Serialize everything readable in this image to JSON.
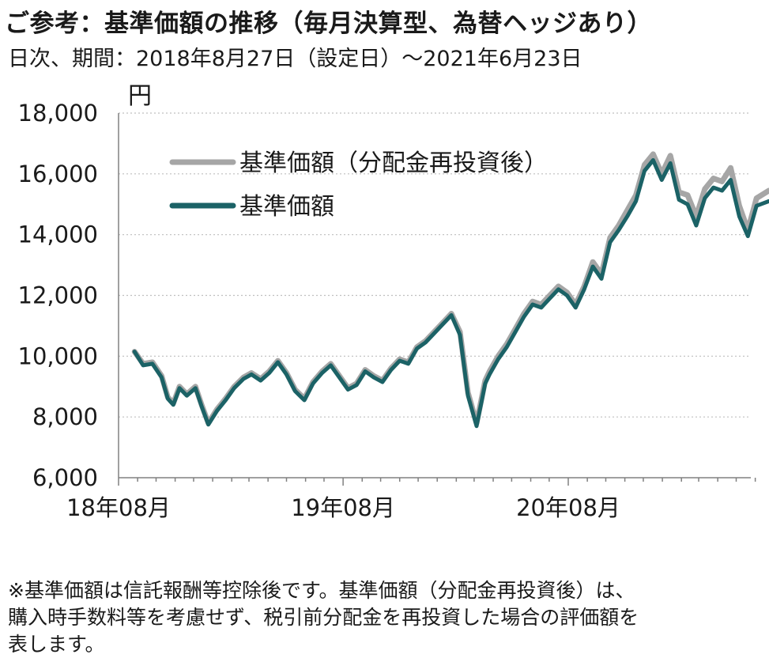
{
  "header": {
    "title": "ご参考：基準価額の推移（毎月決算型、為替ヘッジあり）",
    "subtitle": "日次、期間：2018年8月27日（設定日）～2021年6月23日"
  },
  "footnote": {
    "line1": "※基準価額は信託報酬等控除後です。基準価額（分配金再投資後）は、",
    "line2": "購入時手数料等を考慮せず、税引前分配金を再投資した場合の評価額を",
    "line3": "表します。"
  },
  "colors": {
    "reinvested": "#a6a6a6",
    "nav": "#1b6266",
    "grid": "#bfbfbf",
    "axis": "#808080"
  },
  "chart_data": {
    "type": "line",
    "yunit": "円",
    "ylim": [
      6000,
      18000
    ],
    "yticks": [
      "6,000",
      "8,000",
      "10,000",
      "12,000",
      "14,000",
      "16,000",
      "18,000"
    ],
    "xticks": [
      "18年08月",
      "19年08月",
      "20年08月"
    ],
    "grid": "horizontal dotted",
    "legend_position": "top-left",
    "series": [
      {
        "name": "基準価額（分配金再投資後）",
        "x": [
          "2018-08-27",
          "2018-09-10",
          "2018-09-25",
          "2018-10-10",
          "2018-10-20",
          "2018-10-29",
          "2018-11-08",
          "2018-11-20",
          "2018-12-04",
          "2018-12-14",
          "2018-12-25",
          "2019-01-08",
          "2019-01-22",
          "2019-02-05",
          "2019-02-20",
          "2019-03-05",
          "2019-03-20",
          "2019-04-03",
          "2019-04-17",
          "2019-05-01",
          "2019-05-15",
          "2019-05-30",
          "2019-06-13",
          "2019-06-28",
          "2019-07-12",
          "2019-07-26",
          "2019-08-09",
          "2019-08-23",
          "2019-09-06",
          "2019-09-20",
          "2019-10-04",
          "2019-10-18",
          "2019-11-01",
          "2019-11-15",
          "2019-11-29",
          "2019-12-13",
          "2019-12-27",
          "2020-01-10",
          "2020-01-24",
          "2020-02-07",
          "2020-02-20",
          "2020-03-05",
          "2020-03-12",
          "2020-03-19",
          "2020-03-26",
          "2020-04-09",
          "2020-04-23",
          "2020-05-07",
          "2020-05-21",
          "2020-06-04",
          "2020-06-18",
          "2020-07-02",
          "2020-07-16",
          "2020-07-30",
          "2020-08-13",
          "2020-08-27",
          "2020-09-10",
          "2020-09-24",
          "2020-10-08",
          "2020-10-22",
          "2020-11-05",
          "2020-11-19",
          "2020-12-03",
          "2020-12-17",
          "2020-12-31",
          "2021-01-14",
          "2021-01-28",
          "2021-02-11",
          "2021-02-25",
          "2021-03-11",
          "2021-03-25",
          "2021-04-08",
          "2021-04-22",
          "2021-05-06",
          "2021-05-20",
          "2021-06-03",
          "2021-06-23"
        ],
        "y": [
          10150,
          9750,
          9800,
          9350,
          8650,
          8450,
          9000,
          8750,
          9000,
          8400,
          7800,
          8250,
          8600,
          9000,
          9300,
          9450,
          9250,
          9500,
          9850,
          9450,
          8900,
          8600,
          9150,
          9500,
          9750,
          9350,
          8950,
          9100,
          9550,
          9350,
          9200,
          9600,
          9900,
          9800,
          10300,
          10500,
          10800,
          11100,
          11400,
          10800,
          8800,
          7800,
          8500,
          9200,
          9500,
          10000,
          10400,
          10900,
          11400,
          11800,
          11700,
          12000,
          12300,
          12100,
          11700,
          12300,
          13100,
          12700,
          13900,
          14300,
          14800,
          15300,
          16300,
          16650,
          16000,
          16600,
          15400,
          15300,
          14600,
          15500,
          15850,
          15750,
          16200,
          14950,
          14150,
          15200,
          15450
        ]
      },
      {
        "name": "基準価額",
        "x": [
          "2018-08-27",
          "2018-09-10",
          "2018-09-25",
          "2018-10-10",
          "2018-10-20",
          "2018-10-29",
          "2018-11-08",
          "2018-11-20",
          "2018-12-04",
          "2018-12-14",
          "2018-12-25",
          "2019-01-08",
          "2019-01-22",
          "2019-02-05",
          "2019-02-20",
          "2019-03-05",
          "2019-03-20",
          "2019-04-03",
          "2019-04-17",
          "2019-05-01",
          "2019-05-15",
          "2019-05-30",
          "2019-06-13",
          "2019-06-28",
          "2019-07-12",
          "2019-07-26",
          "2019-08-09",
          "2019-08-23",
          "2019-09-06",
          "2019-09-20",
          "2019-10-04",
          "2019-10-18",
          "2019-11-01",
          "2019-11-15",
          "2019-11-29",
          "2019-12-13",
          "2019-12-27",
          "2020-01-10",
          "2020-01-24",
          "2020-02-07",
          "2020-02-20",
          "2020-03-05",
          "2020-03-12",
          "2020-03-19",
          "2020-03-26",
          "2020-04-09",
          "2020-04-23",
          "2020-05-07",
          "2020-05-21",
          "2020-06-04",
          "2020-06-18",
          "2020-07-02",
          "2020-07-16",
          "2020-07-30",
          "2020-08-13",
          "2020-08-27",
          "2020-09-10",
          "2020-09-24",
          "2020-10-08",
          "2020-10-22",
          "2020-11-05",
          "2020-11-19",
          "2020-12-03",
          "2020-12-17",
          "2020-12-31",
          "2021-01-14",
          "2021-01-28",
          "2021-02-11",
          "2021-02-25",
          "2021-03-11",
          "2021-03-25",
          "2021-04-08",
          "2021-04-22",
          "2021-05-06",
          "2021-05-20",
          "2021-06-03",
          "2021-06-23"
        ],
        "y": [
          10150,
          9700,
          9750,
          9300,
          8600,
          8400,
          8950,
          8700,
          8950,
          8350,
          7750,
          8200,
          8550,
          8950,
          9250,
          9400,
          9200,
          9450,
          9800,
          9400,
          8850,
          8550,
          9100,
          9450,
          9700,
          9300,
          8900,
          9050,
          9500,
          9300,
          9150,
          9550,
          9850,
          9750,
          10250,
          10450,
          10750,
          11050,
          11350,
          10700,
          8700,
          7700,
          8400,
          9100,
          9400,
          9900,
          10300,
          10800,
          11300,
          11700,
          11600,
          11900,
          12200,
          12000,
          11600,
          12200,
          12950,
          12550,
          13750,
          14150,
          14600,
          15100,
          16100,
          16450,
          15800,
          16350,
          15150,
          15000,
          14300,
          15200,
          15550,
          15450,
          15800,
          14600,
          13950,
          14950,
          15100
        ]
      }
    ]
  }
}
